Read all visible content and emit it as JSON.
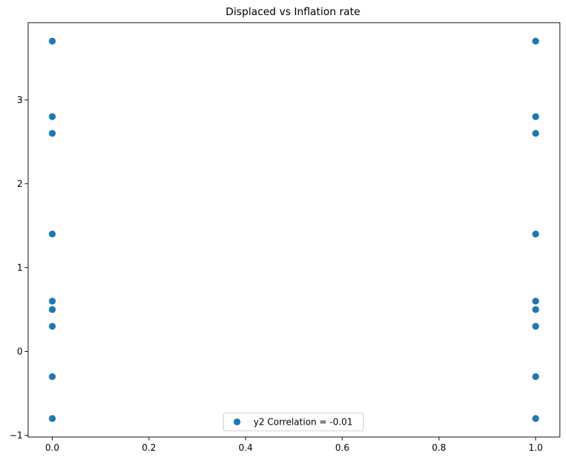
{
  "chart_data": {
    "type": "scatter",
    "title": "Displaced vs Inflation rate",
    "xlabel": "",
    "ylabel": "",
    "xlim": [
      -0.05,
      1.05
    ],
    "ylim": [
      -1.02,
      3.92
    ],
    "x_ticks": [
      {
        "value": 0.0,
        "label": "0.0"
      },
      {
        "value": 0.2,
        "label": "0.2"
      },
      {
        "value": 0.4,
        "label": "0.4"
      },
      {
        "value": 0.6,
        "label": "0.6"
      },
      {
        "value": 0.8,
        "label": "0.8"
      },
      {
        "value": 1.0,
        "label": "1.0"
      }
    ],
    "y_ticks": [
      {
        "value": -1,
        "label": "−1"
      },
      {
        "value": 0,
        "label": "0"
      },
      {
        "value": 1,
        "label": "1"
      },
      {
        "value": 2,
        "label": "2"
      },
      {
        "value": 3,
        "label": "3"
      }
    ],
    "grid": false,
    "legend": {
      "placement": "lower center"
    },
    "series": [
      {
        "name": "y2 Correlation = -0.01",
        "color": "#1f77b4",
        "points": [
          {
            "x": 0,
            "y": 3.7
          },
          {
            "x": 0,
            "y": 2.8
          },
          {
            "x": 0,
            "y": 2.6
          },
          {
            "x": 0,
            "y": 1.4
          },
          {
            "x": 0,
            "y": 0.6
          },
          {
            "x": 0,
            "y": 0.5
          },
          {
            "x": 0,
            "y": 0.3
          },
          {
            "x": 0,
            "y": -0.3
          },
          {
            "x": 0,
            "y": -0.8
          },
          {
            "x": 1,
            "y": 3.7
          },
          {
            "x": 1,
            "y": 2.8
          },
          {
            "x": 1,
            "y": 2.6
          },
          {
            "x": 1,
            "y": 1.4
          },
          {
            "x": 1,
            "y": 0.6
          },
          {
            "x": 1,
            "y": 0.5
          },
          {
            "x": 1,
            "y": 0.3
          },
          {
            "x": 1,
            "y": -0.3
          },
          {
            "x": 1,
            "y": -0.8
          }
        ]
      }
    ]
  }
}
